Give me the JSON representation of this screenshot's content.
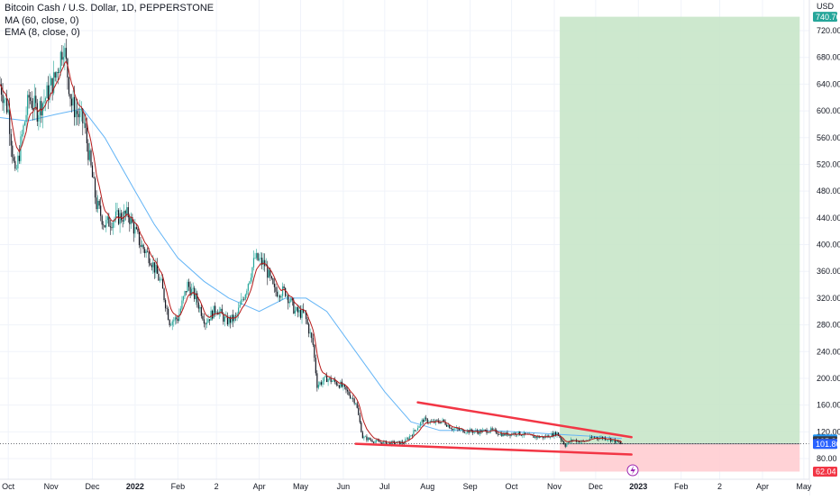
{
  "legend": {
    "symbol": "Bitcoin Cash / U.S. Dollar, 1D, PEPPERSTONE",
    "ma": "MA (60, close, 0)",
    "ema": "EMA (8, close, 0)"
  },
  "chart_data": {
    "type": "candlestick",
    "title": "Bitcoin Cash / U.S. Dollar, 1D, PEPPERSTONE",
    "currency_label": "USD",
    "y_ticks": [
      80,
      120,
      160,
      200,
      240,
      280,
      320,
      360,
      400,
      440,
      480,
      520,
      560,
      600,
      640,
      680,
      720
    ],
    "ylim": [
      62,
      750
    ],
    "x_ticks": [
      "Oct",
      "Nov",
      "Dec",
      "2022",
      "Feb",
      "2",
      "Apr",
      "May",
      "Jun",
      "Jul",
      "Aug",
      "Sep",
      "Oct",
      "Nov",
      "Dec",
      "2023",
      "Feb",
      "2",
      "Apr",
      "May"
    ],
    "xlim": [
      "2021-09-25",
      "2023-05-05"
    ],
    "x_tick_dates": [
      "2021-10-01",
      "2021-11-01",
      "2021-12-01",
      "2022-01-01",
      "2022-02-01",
      "2022-03-01",
      "2022-04-01",
      "2022-05-01",
      "2022-06-01",
      "2022-07-01",
      "2022-08-01",
      "2022-09-01",
      "2022-10-01",
      "2022-11-01",
      "2022-12-01",
      "2023-01-01",
      "2023-02-01",
      "2023-03-01",
      "2023-04-01",
      "2023-05-01"
    ],
    "price_path": [
      {
        "date": "2021-09-25",
        "price": 640
      },
      {
        "date": "2021-10-01",
        "price": 600
      },
      {
        "date": "2021-10-06",
        "price": 500
      },
      {
        "date": "2021-10-10",
        "price": 550
      },
      {
        "date": "2021-10-16",
        "price": 620
      },
      {
        "date": "2021-10-22",
        "price": 600
      },
      {
        "date": "2021-10-28",
        "price": 620
      },
      {
        "date": "2021-11-04",
        "price": 650
      },
      {
        "date": "2021-11-10",
        "price": 700
      },
      {
        "date": "2021-11-16",
        "price": 610
      },
      {
        "date": "2021-11-25",
        "price": 580
      },
      {
        "date": "2021-12-04",
        "price": 460
      },
      {
        "date": "2021-12-10",
        "price": 430
      },
      {
        "date": "2021-12-18",
        "price": 440
      },
      {
        "date": "2021-12-27",
        "price": 445
      },
      {
        "date": "2022-01-05",
        "price": 400
      },
      {
        "date": "2022-01-12",
        "price": 380
      },
      {
        "date": "2022-01-20",
        "price": 340
      },
      {
        "date": "2022-01-26",
        "price": 285
      },
      {
        "date": "2022-02-01",
        "price": 290
      },
      {
        "date": "2022-02-08",
        "price": 340
      },
      {
        "date": "2022-02-14",
        "price": 320
      },
      {
        "date": "2022-02-21",
        "price": 285
      },
      {
        "date": "2022-03-01",
        "price": 305
      },
      {
        "date": "2022-03-08",
        "price": 285
      },
      {
        "date": "2022-03-15",
        "price": 290
      },
      {
        "date": "2022-03-22",
        "price": 330
      },
      {
        "date": "2022-03-29",
        "price": 380
      },
      {
        "date": "2022-04-05",
        "price": 370
      },
      {
        "date": "2022-04-12",
        "price": 330
      },
      {
        "date": "2022-04-20",
        "price": 330
      },
      {
        "date": "2022-04-27",
        "price": 300
      },
      {
        "date": "2022-05-04",
        "price": 295
      },
      {
        "date": "2022-05-10",
        "price": 250
      },
      {
        "date": "2022-05-13",
        "price": 190
      },
      {
        "date": "2022-05-20",
        "price": 200
      },
      {
        "date": "2022-05-30",
        "price": 190
      },
      {
        "date": "2022-06-10",
        "price": 165
      },
      {
        "date": "2022-06-15",
        "price": 112
      },
      {
        "date": "2022-06-25",
        "price": 105
      },
      {
        "date": "2022-07-05",
        "price": 103
      },
      {
        "date": "2022-07-15",
        "price": 104
      },
      {
        "date": "2022-07-22",
        "price": 120
      },
      {
        "date": "2022-07-29",
        "price": 138
      },
      {
        "date": "2022-08-05",
        "price": 134
      },
      {
        "date": "2022-08-12",
        "price": 136
      },
      {
        "date": "2022-08-19",
        "price": 125
      },
      {
        "date": "2022-08-26",
        "price": 122
      },
      {
        "date": "2022-09-06",
        "price": 120
      },
      {
        "date": "2022-09-16",
        "price": 122
      },
      {
        "date": "2022-09-25",
        "price": 116
      },
      {
        "date": "2022-10-05",
        "price": 118
      },
      {
        "date": "2022-10-15",
        "price": 113
      },
      {
        "date": "2022-10-25",
        "price": 112
      },
      {
        "date": "2022-11-03",
        "price": 118
      },
      {
        "date": "2022-11-09",
        "price": 100
      },
      {
        "date": "2022-11-14",
        "price": 108
      },
      {
        "date": "2022-11-22",
        "price": 105
      },
      {
        "date": "2022-11-30",
        "price": 112
      },
      {
        "date": "2022-12-10",
        "price": 110
      },
      {
        "date": "2022-12-20",
        "price": 101.98
      }
    ],
    "ma60_path": [
      {
        "date": "2021-09-25",
        "price": 590
      },
      {
        "date": "2021-10-15",
        "price": 585
      },
      {
        "date": "2021-11-05",
        "price": 595
      },
      {
        "date": "2021-11-24",
        "price": 603
      },
      {
        "date": "2021-12-10",
        "price": 560
      },
      {
        "date": "2022-01-01",
        "price": 480
      },
      {
        "date": "2022-01-15",
        "price": 430
      },
      {
        "date": "2022-02-01",
        "price": 380
      },
      {
        "date": "2022-02-20",
        "price": 345
      },
      {
        "date": "2022-03-10",
        "price": 320
      },
      {
        "date": "2022-04-01",
        "price": 300
      },
      {
        "date": "2022-04-20",
        "price": 320
      },
      {
        "date": "2022-05-05",
        "price": 320
      },
      {
        "date": "2022-05-20",
        "price": 300
      },
      {
        "date": "2022-06-10",
        "price": 240
      },
      {
        "date": "2022-07-01",
        "price": 180
      },
      {
        "date": "2022-07-20",
        "price": 135
      },
      {
        "date": "2022-08-10",
        "price": 122
      },
      {
        "date": "2022-09-15",
        "price": 122
      },
      {
        "date": "2022-10-20",
        "price": 118
      },
      {
        "date": "2022-12-01",
        "price": 113
      },
      {
        "date": "2022-12-20",
        "price": 110
      }
    ],
    "trendlines": [
      {
        "name": "upper",
        "color": "#f23645",
        "from": {
          "date": "2022-07-25",
          "price": 164
        },
        "to": {
          "date": "2022-12-27",
          "price": 112
        }
      },
      {
        "name": "lower",
        "color": "#f23645",
        "from": {
          "date": "2022-06-10",
          "price": 102
        },
        "to": {
          "date": "2022-12-27",
          "price": 86
        }
      }
    ],
    "position": {
      "entry": 101.98,
      "target": 740.76,
      "stop": 62.04,
      "start_date": "2022-11-05",
      "end_date": "2023-04-28",
      "profit_color": "#c8e6c9",
      "loss_color": "#ffcdd2"
    },
    "price_labels": [
      {
        "label": "USD",
        "price": 759,
        "style": "plain"
      },
      {
        "label": "740.76",
        "price": 740.76,
        "style": "box",
        "bg": "#26a69a"
      },
      {
        "label": "108.56",
        "price": 108.56,
        "style": "box",
        "bg": "#2196f3"
      },
      {
        "label": "105.88",
        "price": 105.88,
        "style": "box",
        "bg": "#363a45"
      },
      {
        "label": "101.98",
        "price": 101.98,
        "style": "box",
        "bg": "#131722"
      },
      {
        "label": "101.86",
        "price": 101.86,
        "style": "box",
        "bg": "#2962ff"
      },
      {
        "label": "62.04",
        "price": 62.04,
        "style": "box",
        "bg": "#f23645"
      }
    ],
    "colors": {
      "up": "#26a69a",
      "down": "#131722",
      "ma": "#64b5f6",
      "ema": "#b71c1c",
      "grid": "#f0f3fa",
      "axis_text": "#131722"
    }
  }
}
